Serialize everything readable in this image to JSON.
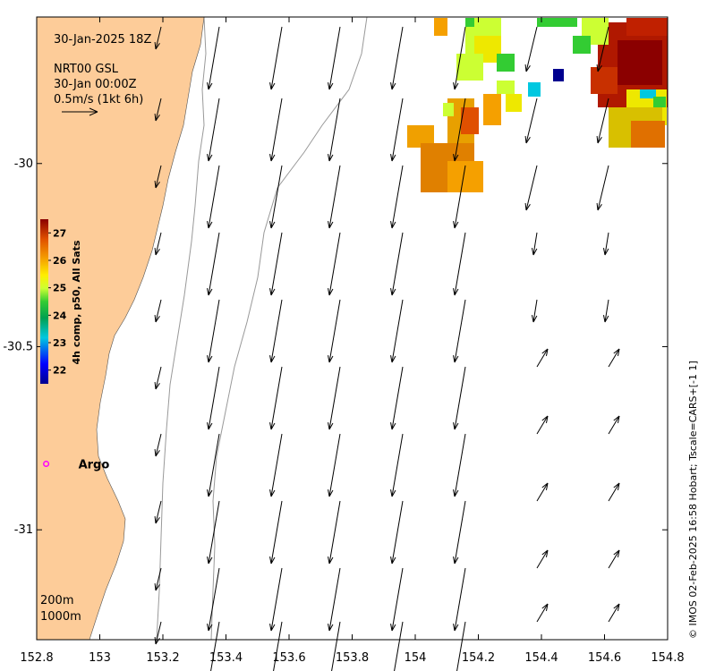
{
  "header": {
    "date": "30-Jan-2025 18Z",
    "product": "NRT00 GSL",
    "product_date": "30-Jan 00:00Z",
    "scale_label": "0.5m/s (1kt 6h)"
  },
  "map": {
    "lon_ticks": [
      "152.8",
      "153",
      "153.2",
      "153.4",
      "153.6",
      "153.8",
      "154",
      "154.2",
      "154.4",
      "154.6",
      "154.8"
    ],
    "lat_ticks": [
      "-30",
      "-30.5",
      "-31"
    ],
    "lon_range": [
      152.8,
      154.8
    ],
    "lat_range": [
      -31.3,
      -29.6
    ],
    "land_color": "#FDCC99",
    "ocean_color": "#FFFFFF"
  },
  "colorbar": {
    "title": "4h comp, p50, All Sats",
    "ticks": [
      "27",
      "26",
      "25",
      "24",
      "23",
      "22"
    ],
    "range": [
      21.5,
      27.5
    ]
  },
  "isobaths": [
    "200m",
    "1000m"
  ],
  "argo": {
    "label": "Argo",
    "lon": 152.83,
    "lat": -30.82
  },
  "credit": "© IMOS 02-Feb-2025 16:58 Hobart; Tscale=CARS+[-1 1]"
}
